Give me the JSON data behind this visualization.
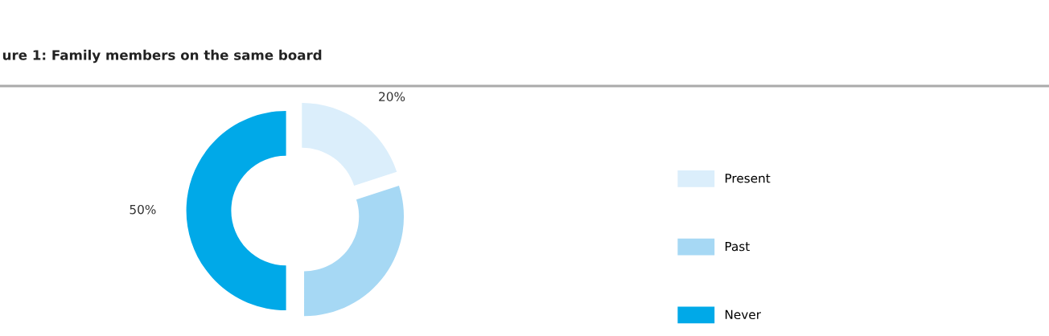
{
  "chart_data": {
    "type": "donut",
    "title": "ure 1: Family members on the same board",
    "categories": [
      "Present",
      "Past",
      "Never"
    ],
    "values": [
      20,
      30,
      50
    ],
    "colors": [
      "#dbeefb",
      "#a6d8f4",
      "#00a9e8"
    ],
    "value_labels": [
      "20%",
      null,
      "50%"
    ],
    "legend": "right"
  }
}
